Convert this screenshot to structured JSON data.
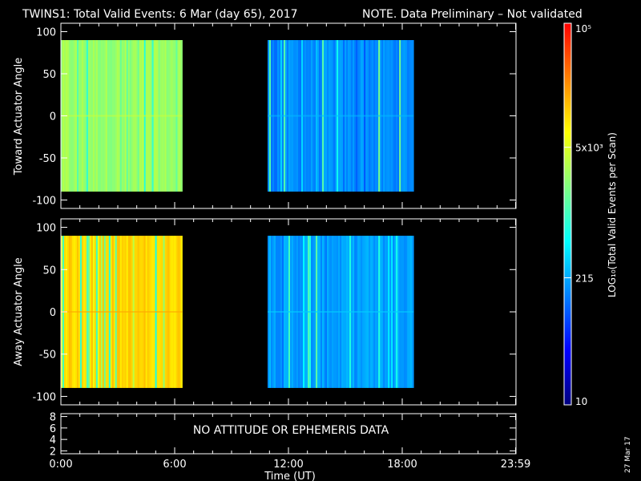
{
  "header": {
    "title": "TWINS1: Total Valid Events:  6 Mar (day  65), 2017",
    "note": "NOTE. Data Preliminary – Not validated",
    "note_color": "#ff1a1a"
  },
  "footer": {
    "date_stamp": "27 Mar 17"
  },
  "chart_data": [
    {
      "type": "heatmap",
      "panel": "toward",
      "ylabel": "Toward Actuator Angle",
      "ylim": [
        -110,
        110
      ],
      "yticks": [
        "100",
        "50",
        "0",
        "-50",
        "-100"
      ],
      "ytick_values": [
        100,
        50,
        0,
        -50,
        -100
      ],
      "xlim_hours": [
        0,
        24
      ],
      "data_angle_range": [
        -90,
        90
      ],
      "segments": [
        {
          "start_hour": 0.0,
          "end_hour": 6.4,
          "level_range": [
            0.4,
            0.66
          ],
          "typical_level": 0.6
        },
        {
          "start_hour": 10.9,
          "end_hour": 18.6,
          "level_range": [
            0.22,
            0.56
          ],
          "typical_level": 0.3
        }
      ]
    },
    {
      "type": "heatmap",
      "panel": "away",
      "ylabel": "Away Actuator Angle",
      "ylim": [
        -110,
        110
      ],
      "yticks": [
        "100",
        "50",
        "0",
        "-50",
        "-100"
      ],
      "ytick_values": [
        100,
        50,
        0,
        -50,
        -100
      ],
      "xlim_hours": [
        0,
        24
      ],
      "data_angle_range": [
        -90,
        90
      ],
      "segments": [
        {
          "start_hour": 0.0,
          "end_hour": 6.4,
          "level_range": [
            0.45,
            0.8
          ],
          "typical_level": 0.76
        },
        {
          "start_hour": 10.9,
          "end_hour": 18.6,
          "level_range": [
            0.22,
            0.58
          ],
          "typical_level": 0.32
        }
      ]
    },
    {
      "type": "table",
      "panel": "ephemeris",
      "yticks": [
        "8",
        "6",
        "4",
        "2"
      ],
      "ytick_values": [
        8,
        6,
        4,
        2
      ],
      "ylim": [
        1.5,
        8.5
      ],
      "message": "NO ATTITUDE OR EPHEMERIS DATA"
    }
  ],
  "xaxis": {
    "label": "Time (UT)",
    "tick_labels": [
      "0:00",
      "6:00",
      "12:00",
      "18:00",
      "23:59"
    ],
    "tick_hours": [
      0,
      6,
      12,
      18,
      23.98
    ]
  },
  "colorbar": {
    "label": "LOG₁₀(Total Valid Events per Scan)",
    "scale": "log",
    "range": [
      10,
      100000
    ],
    "tick_labels": [
      "10⁵",
      "5x10³",
      "215",
      "10"
    ],
    "tick_levels": [
      1.0,
      0.675,
      0.333,
      0.0
    ],
    "colors": [
      "#000080",
      "#0000ff",
      "#0080ff",
      "#00ffff",
      "#80ff80",
      "#ffff00",
      "#ff8000",
      "#ff0000"
    ]
  }
}
